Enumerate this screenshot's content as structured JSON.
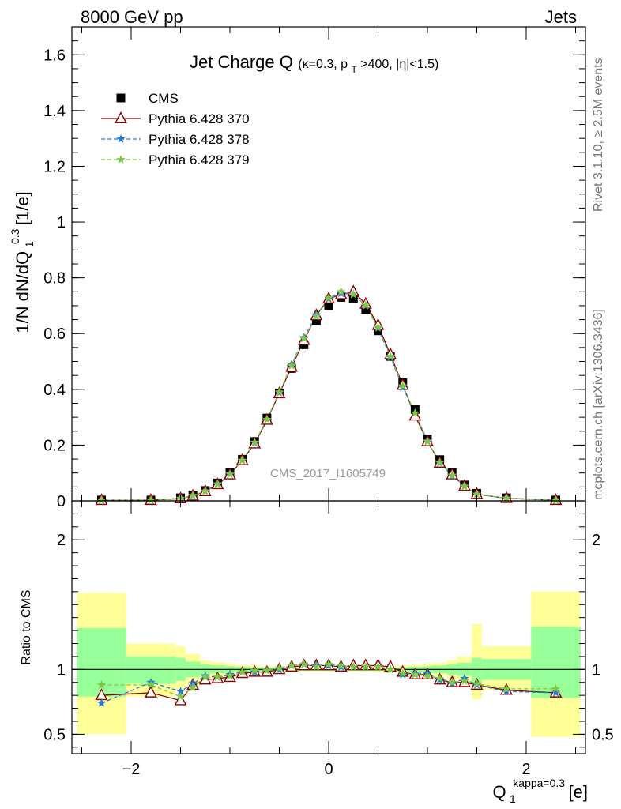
{
  "header": {
    "energy_label": "8000 GeV pp",
    "category_label": "Jets"
  },
  "side_labels": {
    "rivet": "Rivet 3.1.10, ≥ 2.5M events",
    "source": "mcplots.cern.ch [arXiv:1306.3436]"
  },
  "chart_data": [
    {
      "type": "line",
      "panel": "main",
      "title": {
        "main": "Jet Charge Q",
        "kappa": "(κ=0.3, p",
        "pt_sub": "T",
        "rest": ">400, |η|<1.5)"
      },
      "ylabel": {
        "prefix": "1/N dN/dQ",
        "sub": "1",
        "sup": "0.3",
        "suffix": " [1/e]"
      },
      "watermark": "CMS_2017_I1605749",
      "xlim": [
        -2.6,
        2.6
      ],
      "ylim": [
        0,
        1.7
      ],
      "yticks": [
        "0",
        "0.2",
        "0.4",
        "0.6",
        "0.8",
        "1",
        "1.2",
        "1.4",
        "1.6"
      ],
      "ytick_values": [
        0,
        0.2,
        0.4,
        0.6,
        0.8,
        1.0,
        1.2,
        1.4,
        1.6
      ],
      "x": [
        -2.3,
        -1.8,
        -1.5,
        -1.375,
        -1.25,
        -1.125,
        -1.0,
        -0.875,
        -0.75,
        -0.625,
        -0.5,
        -0.375,
        -0.25,
        -0.125,
        0.0,
        0.125,
        0.25,
        0.375,
        0.5,
        0.625,
        0.75,
        0.875,
        1.0,
        1.125,
        1.25,
        1.375,
        1.5,
        1.8,
        2.3
      ],
      "series": [
        {
          "name": "CMS",
          "color": "#000000",
          "marker": "square",
          "values": [
            0.003,
            0.003,
            0.011,
            0.021,
            0.037,
            0.064,
            0.101,
            0.149,
            0.213,
            0.297,
            0.386,
            0.475,
            0.56,
            0.646,
            0.7,
            0.73,
            0.725,
            0.686,
            0.61,
            0.518,
            0.424,
            0.328,
            0.222,
            0.148,
            0.102,
            0.057,
            0.027,
            0.011,
            0.003
          ]
        },
        {
          "name": "Pythia 6.428 370",
          "color": "#8b0000",
          "marker": "triangle",
          "dash": "",
          "values": [
            0.0024,
            0.0025,
            0.0083,
            0.018,
            0.034,
            0.059,
            0.094,
            0.145,
            0.205,
            0.29,
            0.385,
            0.48,
            0.576,
            0.665,
            0.725,
            0.74,
            0.75,
            0.706,
            0.63,
            0.525,
            0.415,
            0.305,
            0.213,
            0.136,
            0.094,
            0.053,
            0.024,
            0.0094,
            0.0025
          ]
        },
        {
          "name": "Pythia 6.428 378",
          "color": "#1e78dc",
          "marker": "star",
          "dash": "5,3",
          "values": [
            0.0022,
            0.0027,
            0.0091,
            0.0185,
            0.035,
            0.061,
            0.097,
            0.145,
            0.208,
            0.292,
            0.388,
            0.488,
            0.585,
            0.667,
            0.725,
            0.744,
            0.741,
            0.7,
            0.62,
            0.515,
            0.407,
            0.315,
            0.215,
            0.136,
            0.091,
            0.053,
            0.024,
            0.0091,
            0.0025
          ]
        },
        {
          "name": "Pythia 6.428 379",
          "color": "#7ac943",
          "marker": "star",
          "dash": "5,3",
          "values": [
            0.0026,
            0.0026,
            0.0088,
            0.019,
            0.035,
            0.06,
            0.095,
            0.145,
            0.21,
            0.292,
            0.39,
            0.485,
            0.582,
            0.662,
            0.728,
            0.75,
            0.74,
            0.701,
            0.622,
            0.518,
            0.412,
            0.315,
            0.213,
            0.138,
            0.092,
            0.052,
            0.024,
            0.0094,
            0.0026
          ]
        }
      ],
      "legend_position": "top-left"
    },
    {
      "type": "line",
      "panel": "ratio",
      "ylabel": "Ratio to CMS",
      "xlabel": {
        "prefix": "Q",
        "sub": "1",
        "sup": "kappa=0.3",
        "suffix": " [e]"
      },
      "xlim": [
        -2.6,
        2.6
      ],
      "ylim": [
        0.35,
        2.3
      ],
      "xticks": [
        "−2",
        "0",
        "2"
      ],
      "xtick_values": [
        -2,
        0,
        2
      ],
      "yticks": [
        "0.5",
        "1",
        "2"
      ],
      "ytick_values": [
        0.5,
        1,
        2
      ],
      "bands": {
        "edges": [
          -2.55,
          -2.05,
          -1.55,
          -1.45,
          -1.3,
          -1.2,
          -1.05,
          -0.95,
          -0.8,
          -0.7,
          -0.55,
          -0.45,
          -0.3,
          -0.2,
          -0.05,
          0.05,
          0.2,
          0.3,
          0.45,
          0.55,
          0.7,
          0.8,
          0.95,
          1.05,
          1.2,
          1.3,
          1.45,
          1.55,
          2.05,
          2.55
        ],
        "green_lo": [
          0.79,
          0.89,
          0.91,
          0.94,
          0.96,
          0.97,
          0.975,
          0.98,
          0.985,
          0.985,
          0.99,
          0.99,
          0.99,
          0.99,
          0.99,
          0.99,
          0.99,
          0.99,
          0.99,
          0.985,
          0.985,
          0.98,
          0.975,
          0.97,
          0.96,
          0.95,
          0.9,
          0.92,
          0.78
        ],
        "green_hi": [
          1.32,
          1.1,
          1.09,
          1.06,
          1.04,
          1.03,
          1.025,
          1.02,
          1.015,
          1.015,
          1.01,
          1.01,
          1.01,
          1.01,
          1.01,
          1.01,
          1.01,
          1.01,
          1.01,
          1.015,
          1.015,
          1.02,
          1.025,
          1.03,
          1.04,
          1.05,
          1.09,
          1.08,
          1.33
        ],
        "yellow_lo": [
          0.5,
          0.79,
          0.83,
          0.88,
          0.93,
          0.945,
          0.955,
          0.965,
          0.97,
          0.975,
          0.98,
          0.98,
          0.985,
          0.985,
          0.985,
          0.985,
          0.985,
          0.985,
          0.98,
          0.975,
          0.975,
          0.97,
          0.96,
          0.95,
          0.93,
          0.91,
          0.77,
          0.84,
          0.48
        ],
        "yellow_hi": [
          1.59,
          1.2,
          1.18,
          1.12,
          1.07,
          1.055,
          1.045,
          1.035,
          1.03,
          1.025,
          1.02,
          1.02,
          1.015,
          1.015,
          1.015,
          1.015,
          1.015,
          1.015,
          1.02,
          1.025,
          1.03,
          1.035,
          1.045,
          1.05,
          1.07,
          1.1,
          1.35,
          1.18,
          1.6
        ]
      },
      "series": [
        {
          "name": "Pythia 6.428 370",
          "color": "#8b0000",
          "marker": "triangle",
          "dash": "",
          "values": [
            0.8,
            0.82,
            0.76,
            0.88,
            0.92,
            0.93,
            0.94,
            0.97,
            0.98,
            0.98,
            1.0,
            1.02,
            1.03,
            1.03,
            1.03,
            1.02,
            1.03,
            1.03,
            1.03,
            1.02,
            0.98,
            0.96,
            0.96,
            0.92,
            0.9,
            0.9,
            0.88,
            0.84,
            0.82
          ]
        },
        {
          "name": "Pythia 6.428 378",
          "color": "#1e78dc",
          "marker": "star",
          "dash": "5,3",
          "values": [
            0.74,
            0.9,
            0.83,
            0.89,
            0.95,
            0.94,
            0.96,
            0.98,
            0.98,
            0.99,
            1.0,
            1.03,
            1.04,
            1.03,
            1.03,
            1.02,
            1.02,
            1.02,
            1.02,
            1.0,
            0.96,
            0.97,
            0.97,
            0.92,
            0.89,
            0.93,
            0.88,
            0.83,
            0.82
          ]
        },
        {
          "name": "Pythia 6.428 379",
          "color": "#7ac943",
          "marker": "star",
          "dash": "5,3",
          "values": [
            0.88,
            0.88,
            0.79,
            0.86,
            0.94,
            0.94,
            0.95,
            0.98,
            0.99,
            0.99,
            1.01,
            1.03,
            1.04,
            1.02,
            1.04,
            1.03,
            1.02,
            1.02,
            1.02,
            1.0,
            0.97,
            0.96,
            0.95,
            0.93,
            0.9,
            0.91,
            0.89,
            0.85,
            0.85
          ]
        }
      ]
    }
  ]
}
